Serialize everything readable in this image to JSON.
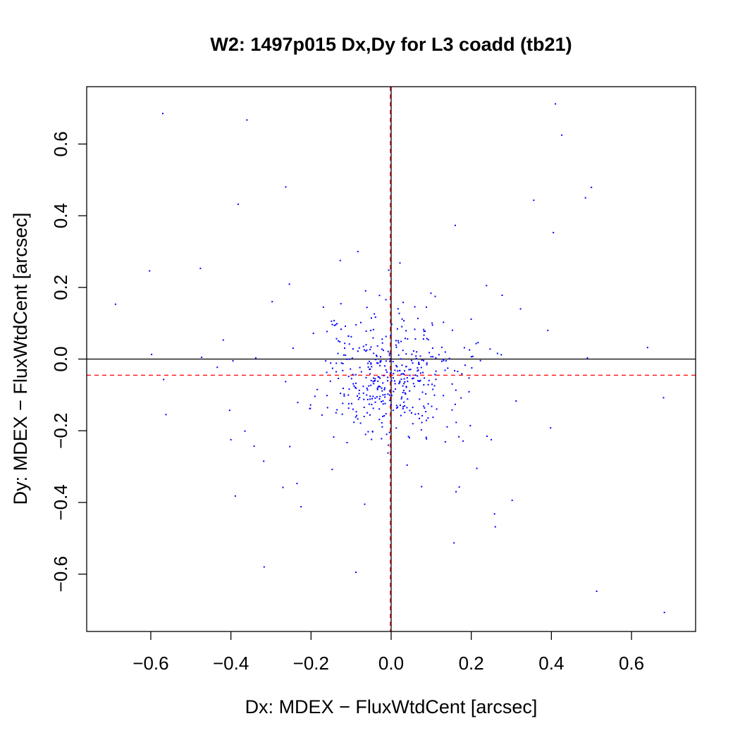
{
  "chart_data": {
    "type": "scatter",
    "title": "W2: 1497p015 Dx,Dy for L3 coadd (tb21)",
    "xlabel": "Dx: MDEX − FluxWtdCent [arcsec]",
    "ylabel": "Dy: MDEX − FluxWtdCent [arcsec]",
    "xlim": [
      -0.76,
      0.76
    ],
    "ylim": [
      -0.76,
      0.76
    ],
    "xticks": [
      -0.6,
      -0.4,
      -0.2,
      0.0,
      0.2,
      0.4,
      0.6
    ],
    "yticks": [
      -0.6,
      -0.4,
      -0.2,
      0.0,
      0.2,
      0.4,
      0.6
    ],
    "xtick_labels": [
      "−0.6",
      "−0.4",
      "−0.2",
      "0.0",
      "0.2",
      "0.4",
      "0.6"
    ],
    "ytick_labels": [
      "−0.6",
      "−0.4",
      "−0.2",
      "0.0",
      "0.2",
      "0.4",
      "0.6"
    ],
    "grid": false,
    "point_color": "#0000ff",
    "reference_lines": [
      {
        "orientation": "vertical",
        "value": 0.0,
        "color": "#000000",
        "style": "solid"
      },
      {
        "orientation": "horizontal",
        "value": 0.0,
        "color": "#000000",
        "style": "solid"
      },
      {
        "orientation": "vertical",
        "value": -0.002,
        "color": "#ff0000",
        "style": "dashed"
      },
      {
        "orientation": "horizontal",
        "value": -0.045,
        "color": "#ff0000",
        "style": "dashed"
      }
    ],
    "outlier_points": [
      [
        -0.57,
        0.685
      ],
      [
        -0.36,
        0.667
      ],
      [
        0.41,
        0.712
      ],
      [
        0.426,
        0.625
      ],
      [
        -0.263,
        0.48
      ],
      [
        -0.382,
        0.432
      ],
      [
        0.356,
        0.443
      ],
      [
        0.485,
        0.45
      ],
      [
        0.5,
        0.479
      ],
      [
        0.16,
        0.373
      ],
      [
        0.405,
        0.353
      ],
      [
        -0.603,
        0.246
      ],
      [
        -0.476,
        0.253
      ],
      [
        -0.688,
        0.153
      ],
      [
        -0.297,
        0.16
      ],
      [
        -0.254,
        0.209
      ],
      [
        -0.083,
        0.3
      ],
      [
        -0.127,
        0.275
      ],
      [
        0.022,
        0.268
      ],
      [
        0.238,
        0.205
      ],
      [
        0.277,
        0.178
      ],
      [
        0.323,
        0.14
      ],
      [
        0.391,
        0.08
      ],
      [
        0.64,
        0.032
      ],
      [
        0.49,
        0.003
      ],
      [
        0.68,
        -0.108
      ],
      [
        -0.598,
        0.013
      ],
      [
        -0.473,
        0.005
      ],
      [
        -0.568,
        -0.057
      ],
      [
        -0.562,
        -0.155
      ],
      [
        -0.403,
        -0.143
      ],
      [
        -0.4,
        -0.225
      ],
      [
        -0.365,
        -0.201
      ],
      [
        -0.342,
        -0.243
      ],
      [
        -0.318,
        -0.285
      ],
      [
        -0.27,
        -0.358
      ],
      [
        -0.253,
        -0.244
      ],
      [
        -0.235,
        -0.347
      ],
      [
        -0.225,
        -0.412
      ],
      [
        -0.389,
        -0.382
      ],
      [
        -0.317,
        -0.58
      ],
      [
        -0.088,
        -0.595
      ],
      [
        -0.066,
        -0.405
      ],
      [
        0.157,
        -0.513
      ],
      [
        0.26,
        -0.468
      ],
      [
        0.258,
        -0.432
      ],
      [
        0.302,
        -0.394
      ],
      [
        0.398,
        -0.192
      ],
      [
        0.312,
        -0.117
      ],
      [
        0.25,
        -0.225
      ],
      [
        0.214,
        -0.305
      ],
      [
        0.162,
        -0.37
      ],
      [
        0.17,
        -0.357
      ],
      [
        0.513,
        -0.648
      ],
      [
        0.682,
        -0.707
      ],
      [
        0.076,
        -0.356
      ],
      [
        -0.008,
        -0.262
      ],
      [
        0.04,
        -0.296
      ],
      [
        -0.147,
        -0.308
      ],
      [
        -0.11,
        -0.233
      ],
      [
        -0.419,
        0.053
      ],
      [
        -0.338,
        0.003
      ],
      [
        -0.395,
        -0.005
      ],
      [
        -0.434,
        -0.023
      ],
      [
        0.137,
        -0.005
      ],
      [
        0.217,
        0.046
      ],
      [
        0.247,
        0.028
      ],
      [
        0.275,
        0.012
      ],
      [
        -0.006,
        0.248
      ],
      [
        0.03,
        0.158
      ],
      [
        -0.194,
        0.072
      ],
      [
        -0.169,
        0.145
      ]
    ],
    "core_cluster": {
      "count": 430,
      "x_mean": 0.0,
      "y_mean": -0.045,
      "x_std": 0.088,
      "y_std": 0.082
    }
  }
}
